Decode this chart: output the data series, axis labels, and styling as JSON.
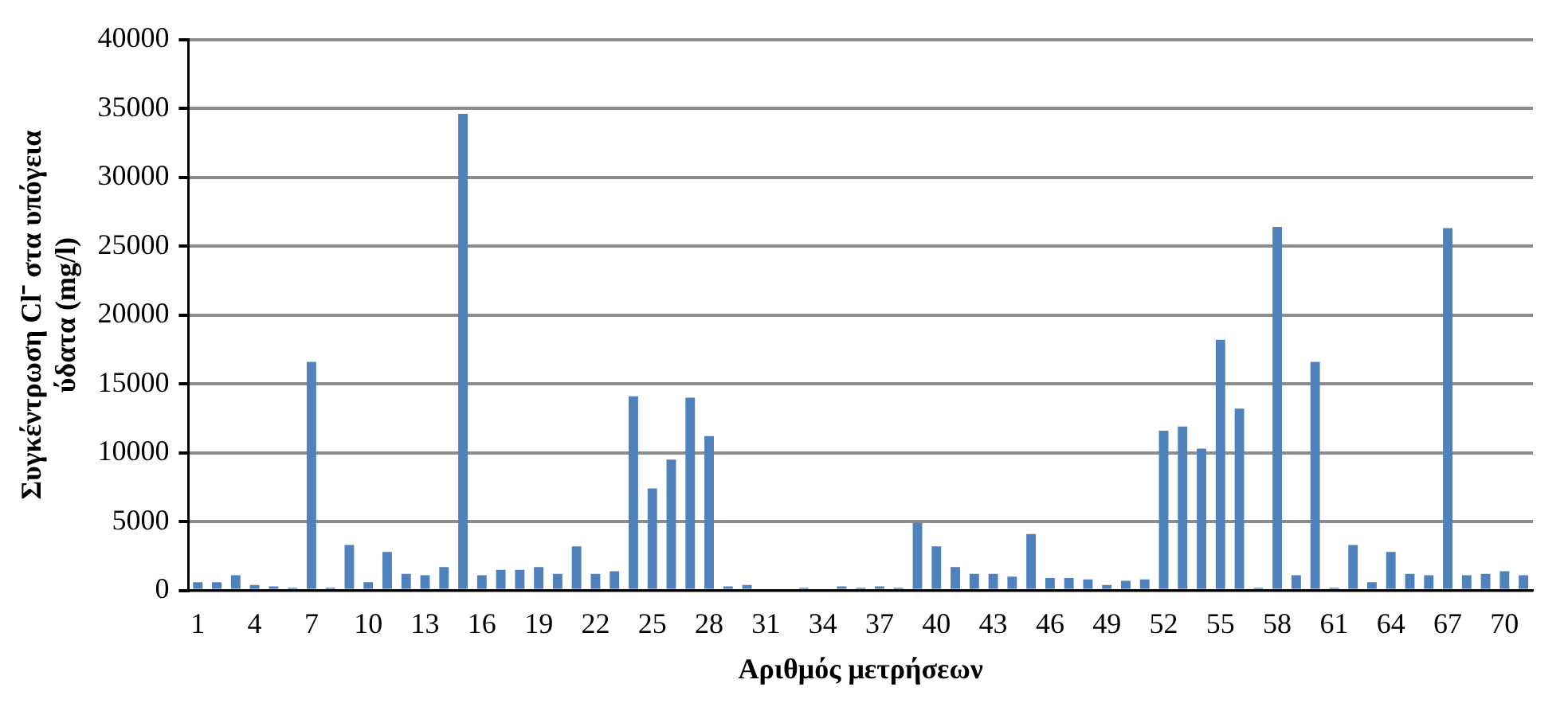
{
  "chart_data": {
    "type": "bar",
    "xlabel": "Αριθμός μετρήσεων",
    "ylabel": "Συγκέντρωση Cl⁻ στα υπόγεια ύδατα (mg/l)",
    "categories": [
      "1",
      null,
      null,
      "4",
      null,
      null,
      "7",
      null,
      null,
      "10",
      null,
      null,
      "13",
      null,
      null,
      "16",
      null,
      null,
      "19",
      null,
      null,
      "22",
      null,
      null,
      "25",
      null,
      null,
      "28",
      null,
      null,
      "31",
      null,
      null,
      "34",
      null,
      null,
      "37",
      null,
      null,
      "40",
      null,
      null,
      "43",
      null,
      null,
      "46",
      null,
      null,
      "49",
      null,
      null,
      "52",
      null,
      null,
      "55",
      null,
      null,
      "58",
      null,
      null,
      "61",
      null,
      null,
      "64",
      null,
      null,
      "67",
      null,
      null,
      "70",
      null
    ],
    "values": [
      600,
      600,
      1100,
      400,
      300,
      200,
      16600,
      200,
      3300,
      600,
      2800,
      1200,
      1100,
      1700,
      34600,
      1100,
      1500,
      1500,
      1700,
      1200,
      3200,
      1200,
      1400,
      14100,
      7400,
      9500,
      14000,
      11200,
      300,
      400,
      0,
      0,
      200,
      0,
      300,
      200,
      300,
      200,
      4900,
      3200,
      1700,
      1200,
      1200,
      1000,
      4100,
      900,
      900,
      800,
      400,
      700,
      800,
      11600,
      11900,
      10300,
      18200,
      13200,
      200,
      26400,
      1100,
      16600,
      200,
      3300,
      600,
      2800,
      1200,
      1100,
      26300,
      1100,
      1200,
      1400,
      1100
    ],
    "color": "#4f81bd",
    "ylim": [
      0,
      40000
    ],
    "yticks": [
      0,
      5000,
      10000,
      15000,
      20000,
      25000,
      30000,
      35000,
      40000
    ],
    "grid": "y",
    "legend": false
  }
}
